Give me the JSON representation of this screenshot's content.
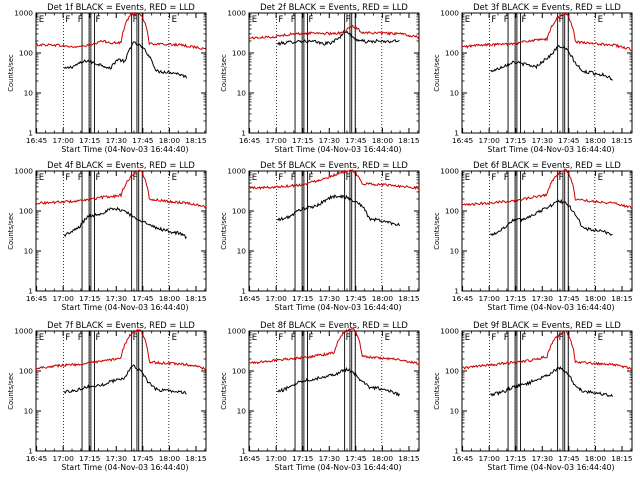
{
  "figure": {
    "background": "#ffffff"
  },
  "chart_data": [
    {
      "type": "line",
      "panel_title": "Det 1f BLACK = Events, RED = LLD",
      "title": "Det 1f  BLACK = Events, RED = LLD",
      "ylabel": "Counts/sec",
      "xlabel": "Start Time (04-Nov-03 16:44:40)",
      "x_ticks": [
        "16:45",
        "17:00",
        "17:15",
        "17:30",
        "17:45",
        "18:00",
        "18:15"
      ],
      "x_unit": "minutes since 16:44:40",
      "xlim": [
        0,
        96
      ],
      "y_ticks": [
        "1",
        "10",
        "100",
        "1000"
      ],
      "ylim": [
        1,
        1000
      ],
      "y_scale": "log",
      "series": [
        {
          "name": "Events",
          "color": "#000000",
          "x_range": [
            16,
            85
          ],
          "values": [
            40,
            45,
            55,
            65,
            55,
            50,
            40,
            70,
            60,
            180,
            150,
            90,
            35,
            34,
            33,
            30,
            25
          ]
        },
        {
          "name": "LLD",
          "color": "#cc0000",
          "x_range": [
            0,
            96
          ],
          "values": [
            160,
            160,
            160,
            150,
            140,
            150,
            160,
            200,
            180,
            180,
            900,
            1000,
            170,
            165,
            165,
            160,
            150,
            140,
            120
          ]
        }
      ],
      "dotted_lines_min": [
        15.5,
        30,
        60,
        75
      ],
      "solid_lines_min": [
        26,
        30,
        31,
        33,
        54,
        57,
        58,
        60
      ],
      "interval_markers": [
        "E",
        "F",
        "F",
        "F",
        "F",
        "E"
      ]
    },
    {
      "type": "line",
      "panel_title": "Det 2f BLACK = Events, RED = LLD",
      "title": "Det 2f  BLACK = Events, RED = LLD",
      "ylabel": "Counts/sec",
      "xlabel": "Start Time (04-Nov-03 16:44:40)",
      "x_ticks": [
        "16:45",
        "17:00",
        "17:15",
        "17:30",
        "17:45",
        "18:00",
        "18:15"
      ],
      "x_unit": "minutes since 16:44:40",
      "xlim": [
        0,
        96
      ],
      "y_ticks": [
        "1",
        "10",
        "100",
        "1000"
      ],
      "ylim": [
        1,
        1000
      ],
      "y_scale": "log",
      "series": [
        {
          "name": "Events",
          "color": "#000000",
          "x_range": [
            16,
            85
          ],
          "values": [
            170,
            180,
            190,
            200,
            195,
            190,
            170,
            180,
            230,
            360,
            230,
            200,
            190,
            200,
            190,
            195,
            200
          ]
        },
        {
          "name": "LLD",
          "color": "#cc0000",
          "x_range": [
            0,
            96
          ],
          "values": [
            240,
            240,
            250,
            260,
            290,
            300,
            310,
            320,
            310,
            300,
            340,
            470,
            330,
            320,
            310,
            310,
            300,
            270,
            250
          ]
        }
      ],
      "dotted_lines_min": [
        15.5,
        30,
        60,
        75
      ],
      "solid_lines_min": [
        26,
        30,
        31,
        33,
        54,
        57,
        58,
        60
      ],
      "interval_markers": [
        "E",
        "F",
        "F",
        "F",
        "F",
        "E"
      ]
    },
    {
      "type": "line",
      "panel_title": "Det 3f BLACK = Events, RED = LLD",
      "title": "Det 3f  BLACK = Events, RED = LLD",
      "ylabel": "Counts/sec",
      "xlabel": "Start Time (04-Nov-03 16:44:40)",
      "x_ticks": [
        "16:45",
        "17:00",
        "17:15",
        "17:30",
        "17:45",
        "18:00",
        "18:15"
      ],
      "x_unit": "minutes since 16:44:40",
      "xlim": [
        0,
        96
      ],
      "y_ticks": [
        "1",
        "10",
        "100",
        "1000"
      ],
      "ylim": [
        1,
        1000
      ],
      "y_scale": "log",
      "series": [
        {
          "name": "Events",
          "color": "#000000",
          "x_range": [
            16,
            85
          ],
          "values": [
            35,
            40,
            50,
            60,
            55,
            50,
            45,
            65,
            90,
            150,
            120,
            60,
            34,
            33,
            30,
            28,
            22
          ]
        },
        {
          "name": "LLD",
          "color": "#cc0000",
          "x_range": [
            0,
            96
          ],
          "values": [
            140,
            150,
            160,
            160,
            165,
            170,
            180,
            200,
            210,
            220,
            700,
            1000,
            190,
            180,
            170,
            165,
            160,
            140,
            120
          ]
        }
      ],
      "dotted_lines_min": [
        15.5,
        30,
        60,
        75
      ],
      "solid_lines_min": [
        26,
        30,
        31,
        33,
        54,
        57,
        58,
        60
      ],
      "interval_markers": [
        "E",
        "F",
        "F",
        "F",
        "F",
        "E"
      ]
    },
    {
      "type": "line",
      "panel_title": "Det 4f BLACK = Events, RED = LLD",
      "title": "Det 4f  BLACK = Events, RED = LLD",
      "ylabel": "Counts/sec",
      "xlabel": "Start Time (04-Nov-03 16:44:40)",
      "x_ticks": [
        "16:45",
        "17:00",
        "17:15",
        "17:30",
        "17:45",
        "18:00",
        "18:15"
      ],
      "x_unit": "minutes since 16:44:40",
      "xlim": [
        0,
        96
      ],
      "y_ticks": [
        "1",
        "10",
        "100",
        "1000"
      ],
      "ylim": [
        1,
        1000
      ],
      "y_scale": "log",
      "series": [
        {
          "name": "Events",
          "color": "#000000",
          "x_range": [
            16,
            85
          ],
          "values": [
            25,
            30,
            40,
            70,
            80,
            90,
            110,
            110,
            100,
            70,
            60,
            45,
            38,
            34,
            30,
            28,
            22
          ]
        },
        {
          "name": "LLD",
          "color": "#cc0000",
          "x_range": [
            0,
            96
          ],
          "values": [
            160,
            160,
            165,
            170,
            175,
            180,
            200,
            220,
            230,
            250,
            700,
            1100,
            200,
            185,
            175,
            165,
            160,
            145,
            125
          ]
        }
      ],
      "dotted_lines_min": [
        15.5,
        30,
        60,
        75
      ],
      "solid_lines_min": [
        26,
        30,
        31,
        33,
        54,
        57,
        58,
        60
      ],
      "interval_markers": [
        "E",
        "F",
        "F",
        "F",
        "F",
        "E"
      ]
    },
    {
      "type": "line",
      "panel_title": "Det 5f BLACK = Events, RED = LLD",
      "title": "Det 5f  BLACK = Events, RED = LLD",
      "ylabel": "Counts/sec",
      "xlabel": "Start Time (04-Nov-03 16:44:40)",
      "x_ticks": [
        "16:45",
        "17:00",
        "17:15",
        "17:30",
        "17:45",
        "18:00",
        "18:15"
      ],
      "x_unit": "minutes since 16:44:40",
      "xlim": [
        0,
        96
      ],
      "y_ticks": [
        "1",
        "10",
        "100",
        "1000"
      ],
      "ylim": [
        1,
        1000
      ],
      "y_scale": "log",
      "series": [
        {
          "name": "Events",
          "color": "#000000",
          "x_range": [
            16,
            85
          ],
          "values": [
            60,
            65,
            80,
            110,
            120,
            130,
            170,
            220,
            240,
            220,
            180,
            140,
            65,
            60,
            55,
            50,
            45
          ]
        },
        {
          "name": "LLD",
          "color": "#cc0000",
          "x_range": [
            0,
            96
          ],
          "values": [
            380,
            380,
            390,
            400,
            420,
            440,
            470,
            560,
            650,
            800,
            950,
            1000,
            480,
            470,
            460,
            440,
            420,
            400,
            380
          ]
        }
      ],
      "dotted_lines_min": [
        15.5,
        30,
        60,
        75
      ],
      "solid_lines_min": [
        26,
        30,
        31,
        33,
        54,
        57,
        58,
        60
      ],
      "interval_markers": [
        "E",
        "F",
        "F",
        "F",
        "F",
        "E"
      ]
    },
    {
      "type": "line",
      "panel_title": "Det 6f BLACK = Events, RED = LLD",
      "title": "Det 6f  BLACK = Events, RED = LLD",
      "ylabel": "Counts/sec",
      "xlabel": "Start Time (04-Nov-03 16:44:40)",
      "x_ticks": [
        "16:45",
        "17:00",
        "17:15",
        "17:30",
        "17:45",
        "18:00",
        "18:15"
      ],
      "x_unit": "minutes since 16:44:40",
      "xlim": [
        0,
        96
      ],
      "y_ticks": [
        "1",
        "10",
        "100",
        "1000"
      ],
      "ylim": [
        1,
        1000
      ],
      "y_scale": "log",
      "series": [
        {
          "name": "Events",
          "color": "#000000",
          "x_range": [
            16,
            85
          ],
          "values": [
            25,
            30,
            40,
            60,
            60,
            70,
            90,
            110,
            140,
            180,
            150,
            90,
            38,
            35,
            32,
            30,
            25
          ]
        },
        {
          "name": "LLD",
          "color": "#cc0000",
          "x_range": [
            0,
            96
          ],
          "values": [
            140,
            145,
            155,
            160,
            170,
            175,
            190,
            210,
            230,
            260,
            800,
            1100,
            200,
            185,
            175,
            165,
            160,
            140,
            120
          ]
        }
      ],
      "dotted_lines_min": [
        15.5,
        30,
        60,
        75
      ],
      "solid_lines_min": [
        26,
        30,
        31,
        33,
        54,
        57,
        58,
        60
      ],
      "interval_markers": [
        "E",
        "F",
        "F",
        "F",
        "F",
        "E"
      ]
    },
    {
      "type": "line",
      "panel_title": "Det 7f BLACK = Events, RED = LLD",
      "title": "Det 7f  BLACK = Events, RED = LLD",
      "ylabel": "Counts/sec",
      "xlabel": "Start Time (04-Nov-03 16:44:40)",
      "x_ticks": [
        "16:45",
        "17:00",
        "17:15",
        "17:30",
        "17:45",
        "18:00",
        "18:15"
      ],
      "x_unit": "minutes since 16:44:40",
      "xlim": [
        0,
        96
      ],
      "y_ticks": [
        "1",
        "10",
        "100",
        "1000"
      ],
      "ylim": [
        1,
        1000
      ],
      "y_scale": "log",
      "series": [
        {
          "name": "Events",
          "color": "#000000",
          "x_range": [
            16,
            85
          ],
          "values": [
            30,
            32,
            35,
            40,
            42,
            45,
            55,
            60,
            70,
            140,
            100,
            50,
            35,
            33,
            32,
            30,
            28
          ]
        },
        {
          "name": "LLD",
          "color": "#cc0000",
          "x_range": [
            0,
            96
          ],
          "values": [
            120,
            125,
            135,
            140,
            145,
            150,
            160,
            175,
            190,
            220,
            800,
            1100,
            170,
            160,
            155,
            150,
            145,
            130,
            110
          ]
        }
      ],
      "dotted_lines_min": [
        15.5,
        30,
        60,
        75
      ],
      "solid_lines_min": [
        26,
        30,
        31,
        33,
        54,
        57,
        58,
        60
      ],
      "interval_markers": [
        "E",
        "F",
        "F",
        "F",
        "F",
        "E"
      ]
    },
    {
      "type": "line",
      "panel_title": "Det 8f BLACK = Events, RED = LLD",
      "title": "Det 8f  BLACK = Events, RED = LLD",
      "ylabel": "Counts/sec",
      "xlabel": "Start Time (04-Nov-03 16:44:40)",
      "x_ticks": [
        "16:45",
        "17:00",
        "17:15",
        "17:30",
        "17:45",
        "18:00",
        "18:15"
      ],
      "x_unit": "minutes since 16:44:40",
      "xlim": [
        0,
        96
      ],
      "y_ticks": [
        "1",
        "10",
        "100",
        "1000"
      ],
      "ylim": [
        1,
        1000
      ],
      "y_scale": "log",
      "series": [
        {
          "name": "Events",
          "color": "#000000",
          "x_range": [
            16,
            85
          ],
          "values": [
            30,
            35,
            45,
            55,
            60,
            65,
            70,
            80,
            90,
            110,
            90,
            55,
            40,
            38,
            34,
            30,
            26
          ]
        },
        {
          "name": "LLD",
          "color": "#cc0000",
          "x_range": [
            0,
            96
          ],
          "values": [
            160,
            165,
            175,
            190,
            200,
            210,
            220,
            240,
            260,
            290,
            900,
            1200,
            230,
            220,
            210,
            200,
            190,
            170,
            150
          ]
        }
      ],
      "dotted_lines_min": [
        15.5,
        30,
        60,
        75
      ],
      "solid_lines_min": [
        26,
        30,
        31,
        33,
        54,
        57,
        58,
        60
      ],
      "interval_markers": [
        "E",
        "F",
        "F",
        "F",
        "F",
        "E"
      ]
    },
    {
      "type": "line",
      "panel_title": "Det 9f BLACK = Events, RED = LLD",
      "title": "Det 9f  BLACK = Events, RED = LLD",
      "ylabel": "Counts/sec",
      "xlabel": "Start Time (04-Nov-03 16:44:40)",
      "x_ticks": [
        "16:45",
        "17:00",
        "17:15",
        "17:30",
        "17:45",
        "18:00",
        "18:15"
      ],
      "x_unit": "minutes since 16:44:40",
      "xlim": [
        0,
        96
      ],
      "y_ticks": [
        "1",
        "10",
        "100",
        "1000"
      ],
      "ylim": [
        1,
        1000
      ],
      "y_scale": "log",
      "series": [
        {
          "name": "Events",
          "color": "#000000",
          "x_range": [
            16,
            85
          ],
          "values": [
            25,
            28,
            32,
            40,
            45,
            50,
            60,
            70,
            90,
            120,
            90,
            45,
            32,
            30,
            28,
            26,
            24
          ]
        },
        {
          "name": "LLD",
          "color": "#cc0000",
          "x_range": [
            0,
            96
          ],
          "values": [
            120,
            125,
            135,
            140,
            150,
            160,
            170,
            180,
            200,
            230,
            700,
            1000,
            170,
            160,
            155,
            150,
            145,
            130,
            110
          ]
        }
      ],
      "dotted_lines_min": [
        15.5,
        30,
        60,
        75
      ],
      "solid_lines_min": [
        26,
        30,
        31,
        33,
        54,
        57,
        58,
        60
      ],
      "interval_markers": [
        "E",
        "F",
        "F",
        "F",
        "F",
        "E"
      ]
    }
  ]
}
